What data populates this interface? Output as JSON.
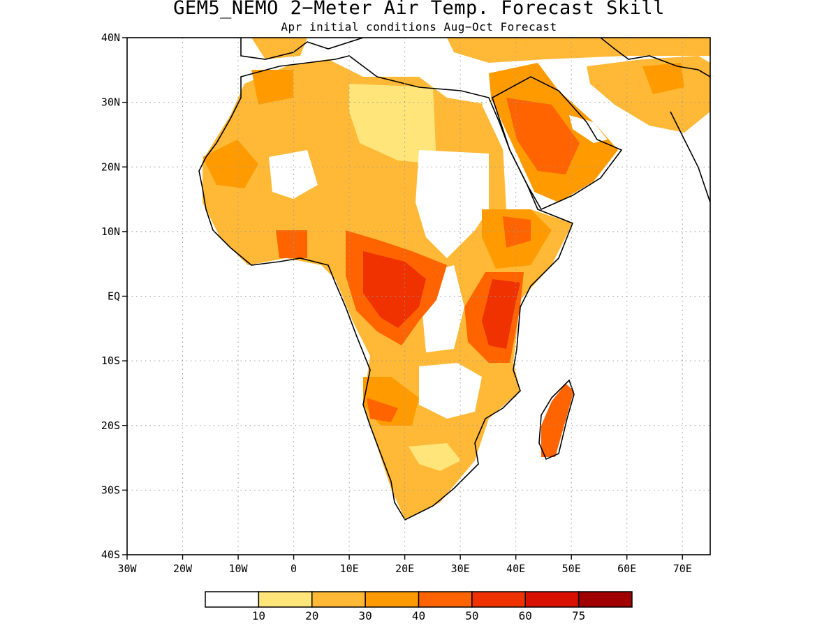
{
  "title": "GEM5_NEMO 2−Meter Air Temp. Forecast Skill",
  "subtitle": "Apr initial conditions  Aug−Oct Forecast",
  "map": {
    "lon_range": [
      -30,
      75
    ],
    "lat_range": [
      -40,
      40
    ],
    "grid": true,
    "lon_ticks": [
      {
        "value": -30,
        "label": "30W"
      },
      {
        "value": -20,
        "label": "20W"
      },
      {
        "value": -10,
        "label": "10W"
      },
      {
        "value": 0,
        "label": "0"
      },
      {
        "value": 10,
        "label": "10E"
      },
      {
        "value": 20,
        "label": "20E"
      },
      {
        "value": 30,
        "label": "30E"
      },
      {
        "value": 40,
        "label": "40E"
      },
      {
        "value": 50,
        "label": "50E"
      },
      {
        "value": 60,
        "label": "60E"
      },
      {
        "value": 70,
        "label": "70E"
      }
    ],
    "lat_ticks": [
      {
        "value": 40,
        "label": "40N"
      },
      {
        "value": 30,
        "label": "30N"
      },
      {
        "value": 20,
        "label": "20N"
      },
      {
        "value": 10,
        "label": "10N"
      },
      {
        "value": 0,
        "label": "EQ"
      },
      {
        "value": -10,
        "label": "10S"
      },
      {
        "value": -20,
        "label": "20S"
      },
      {
        "value": -30,
        "label": "30S"
      },
      {
        "value": -40,
        "label": "40S"
      }
    ]
  },
  "colorbar": {
    "colors": [
      "#ffffff",
      "#ffe57a",
      "#ffb937",
      "#ff9b00",
      "#ff6400",
      "#f03200",
      "#d81000",
      "#a00000"
    ],
    "labels": [
      "10",
      "20",
      "30",
      "40",
      "50",
      "60",
      "75"
    ]
  }
}
